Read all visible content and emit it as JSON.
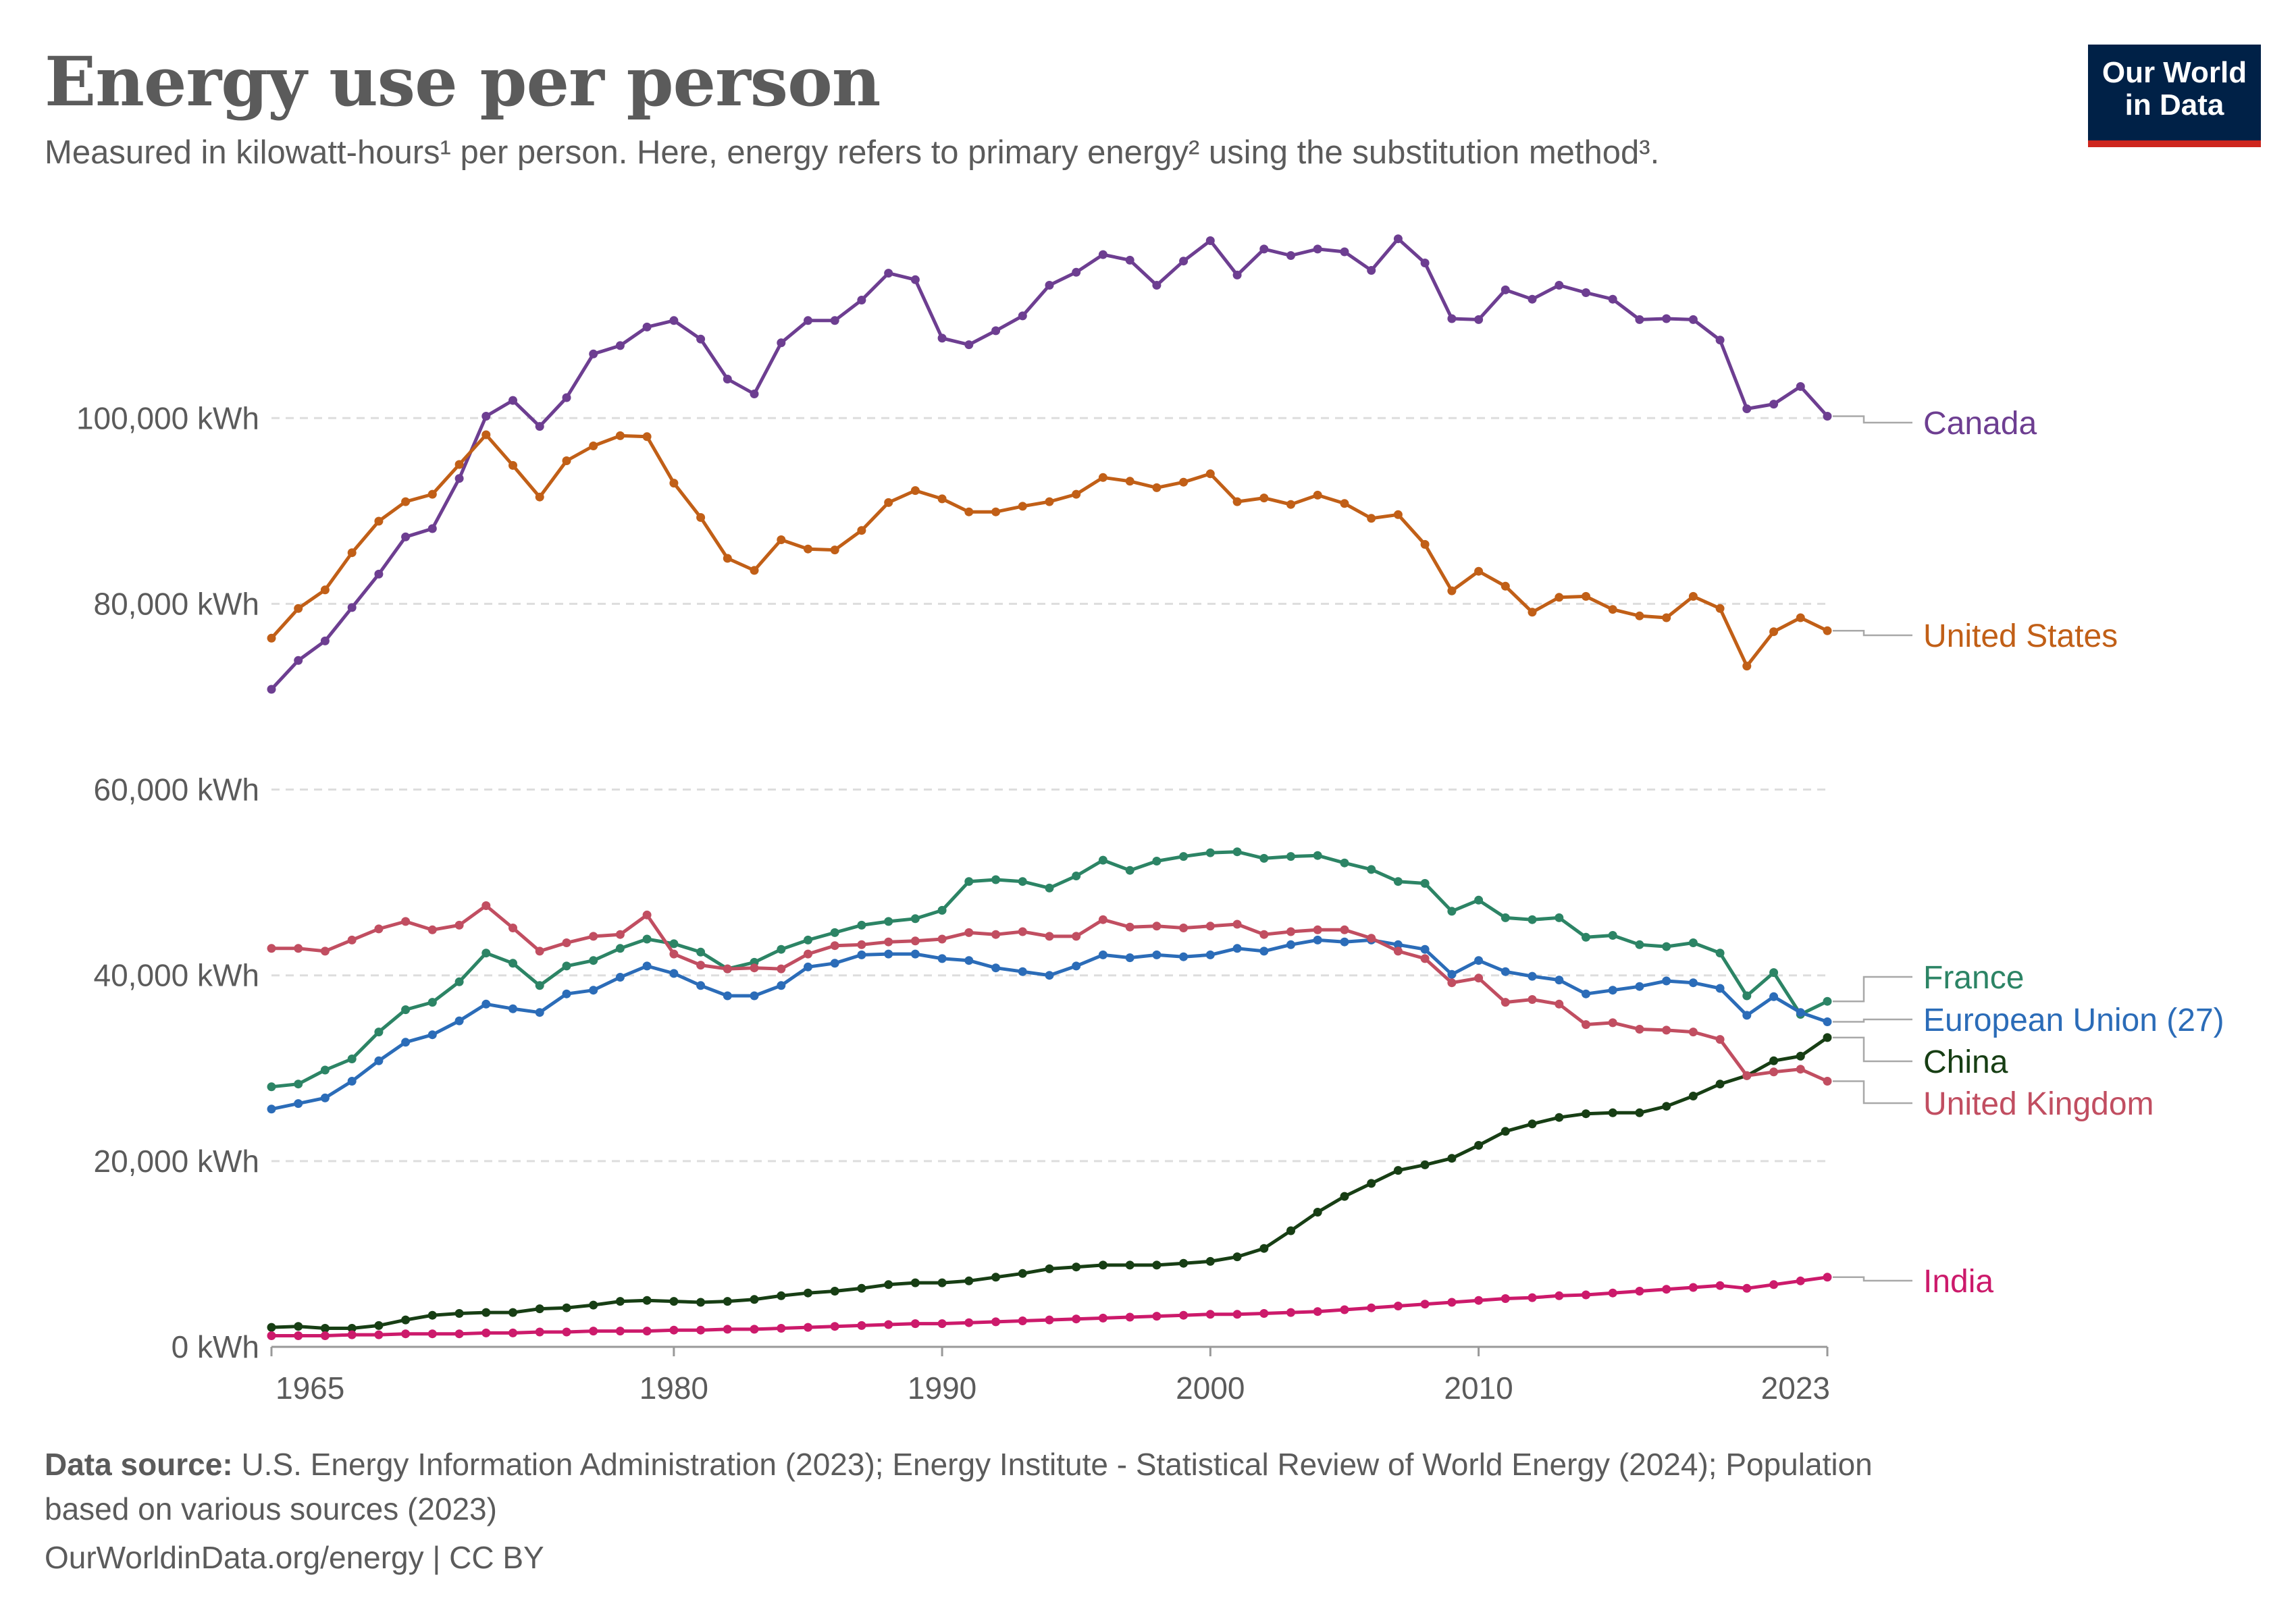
{
  "header": {
    "title": "Energy use per person",
    "subtitle": "Measured in kilowatt-hours¹ per person. Here, energy refers to primary energy² using the substitution method³.",
    "logo_line1": "Our World",
    "logo_line2": "in Data"
  },
  "footer": {
    "source_label": "Data source:",
    "source_text_line1": "U.S. Energy Information Administration (2023); Energy Institute - Statistical Review of World Energy (2024); Population",
    "source_text_line2": "based on various sources (2023)",
    "credit": "OurWorldinData.org/energy | CC BY"
  },
  "colors": {
    "logo_bg": "#002147",
    "logo_accent": "#ce261e",
    "text": "#5b5b5b",
    "grid": "#dddddd"
  },
  "chart_data": {
    "type": "line",
    "y_tick_labels": [
      "0 kWh",
      "20,000 kWh",
      "40,000 kWh",
      "60,000 kWh",
      "80,000 kWh",
      "100,000 kWh"
    ],
    "y_ticks": [
      0,
      20000,
      40000,
      60000,
      80000,
      100000
    ],
    "x_tick_labels": [
      "1965",
      "1980",
      "1990",
      "2000",
      "2010",
      "2023"
    ],
    "x_ticks": [
      1965,
      1980,
      1990,
      2000,
      2010,
      2023
    ],
    "xlim": [
      1965,
      2023
    ],
    "ylim": [
      0,
      120000
    ],
    "grid": "horizontal dashed",
    "series": [
      {
        "name": "Canada",
        "color": "#6d3e91",
        "values": [
          70800,
          73900,
          76000,
          79600,
          83200,
          87200,
          88100,
          93500,
          100200,
          101900,
          99100,
          102200,
          106900,
          107800,
          109800,
          110500,
          108500,
          104200,
          102600,
          108100,
          110500,
          110500,
          112700,
          115600,
          114900,
          108600,
          107900,
          109400,
          111000,
          114300,
          115700,
          117600,
          117000,
          114300,
          116900,
          119100,
          115400,
          118200,
          117500,
          118200,
          117900,
          115900,
          119300,
          116700,
          110700,
          110600,
          113800,
          112800,
          114300,
          113500,
          112800,
          110600,
          110700,
          110600,
          108400,
          101000,
          101500,
          103400,
          100200
        ]
      },
      {
        "name": "United States",
        "color": "#c15f17",
        "values": [
          76300,
          79500,
          81500,
          85500,
          88900,
          91000,
          91800,
          95000,
          98200,
          94900,
          91500,
          95400,
          97000,
          98100,
          98000,
          93000,
          89300,
          84900,
          83600,
          86900,
          85900,
          85800,
          87900,
          90900,
          92200,
          91300,
          89900,
          89900,
          90500,
          91000,
          91800,
          93600,
          93200,
          92500,
          93100,
          94000,
          91000,
          91400,
          90700,
          91700,
          90800,
          89200,
          89600,
          86400,
          81400,
          83500,
          81900,
          79100,
          80700,
          80800,
          79400,
          78700,
          78500,
          80800,
          79500,
          73300,
          77000,
          78500,
          77100
        ]
      },
      {
        "name": "France",
        "color": "#2c8465",
        "values": [
          28000,
          28300,
          29800,
          31000,
          33900,
          36300,
          37100,
          39300,
          42400,
          41300,
          38900,
          41000,
          41600,
          42900,
          43900,
          43400,
          42500,
          40700,
          41400,
          42800,
          43800,
          44600,
          45400,
          45800,
          46100,
          47000,
          50100,
          50300,
          50100,
          49400,
          50700,
          52400,
          51300,
          52300,
          52800,
          53200,
          53300,
          52600,
          52800,
          52900,
          52100,
          51400,
          50100,
          49900,
          46900,
          48100,
          46200,
          46000,
          46200,
          44100,
          44300,
          43300,
          43100,
          43500,
          42400,
          37800,
          40300,
          35800,
          37200
        ]
      },
      {
        "name": "European Union (27)",
        "color": "#2b6cb8",
        "values": [
          25600,
          26200,
          26800,
          28600,
          30800,
          32800,
          33600,
          35100,
          36900,
          36400,
          36000,
          38000,
          38400,
          39800,
          41000,
          40200,
          38900,
          37800,
          37800,
          38900,
          40900,
          41300,
          42200,
          42300,
          42300,
          41800,
          41600,
          40800,
          40400,
          40000,
          41000,
          42200,
          41900,
          42200,
          42000,
          42200,
          42900,
          42600,
          43300,
          43800,
          43600,
          43800,
          43300,
          42800,
          40100,
          41600,
          40400,
          39900,
          39500,
          38000,
          38400,
          38800,
          39400,
          39200,
          38600,
          35700,
          37700,
          36000,
          35000
        ]
      },
      {
        "name": "China",
        "color": "#173e14",
        "values": [
          2100,
          2200,
          2000,
          2000,
          2300,
          2900,
          3400,
          3600,
          3700,
          3700,
          4100,
          4200,
          4500,
          4900,
          5000,
          4900,
          4800,
          4900,
          5100,
          5500,
          5800,
          6000,
          6300,
          6700,
          6900,
          6900,
          7100,
          7500,
          7900,
          8400,
          8600,
          8800,
          8800,
          8800,
          9000,
          9200,
          9700,
          10600,
          12500,
          14500,
          16200,
          17600,
          19000,
          19600,
          20300,
          21700,
          23200,
          24000,
          24700,
          25100,
          25200,
          25200,
          25900,
          27000,
          28300,
          29200,
          30800,
          31300,
          33300
        ]
      },
      {
        "name": "United Kingdom",
        "color": "#c14e61",
        "values": [
          42900,
          42900,
          42600,
          43800,
          45000,
          45800,
          44900,
          45400,
          47500,
          45100,
          42600,
          43500,
          44200,
          44400,
          46500,
          42300,
          41100,
          40700,
          40800,
          40700,
          42300,
          43200,
          43300,
          43600,
          43700,
          43900,
          44600,
          44400,
          44700,
          44200,
          44200,
          46000,
          45200,
          45300,
          45100,
          45300,
          45500,
          44400,
          44700,
          44900,
          44900,
          44000,
          42600,
          41800,
          39200,
          39700,
          37100,
          37400,
          36900,
          34700,
          34900,
          34200,
          34100,
          33900,
          33100,
          29200,
          29600,
          29900,
          28600
        ]
      },
      {
        "name": "India",
        "color": "#cc1a6b",
        "values": [
          1200,
          1200,
          1200,
          1300,
          1300,
          1400,
          1400,
          1400,
          1500,
          1500,
          1600,
          1600,
          1700,
          1700,
          1700,
          1800,
          1800,
          1900,
          1900,
          2000,
          2100,
          2200,
          2300,
          2400,
          2500,
          2500,
          2600,
          2700,
          2800,
          2900,
          3000,
          3100,
          3200,
          3300,
          3400,
          3500,
          3500,
          3600,
          3700,
          3800,
          4000,
          4200,
          4400,
          4600,
          4800,
          5000,
          5200,
          5300,
          5500,
          5600,
          5800,
          6000,
          6200,
          6400,
          6600,
          6300,
          6700,
          7100,
          7500
        ]
      }
    ]
  }
}
